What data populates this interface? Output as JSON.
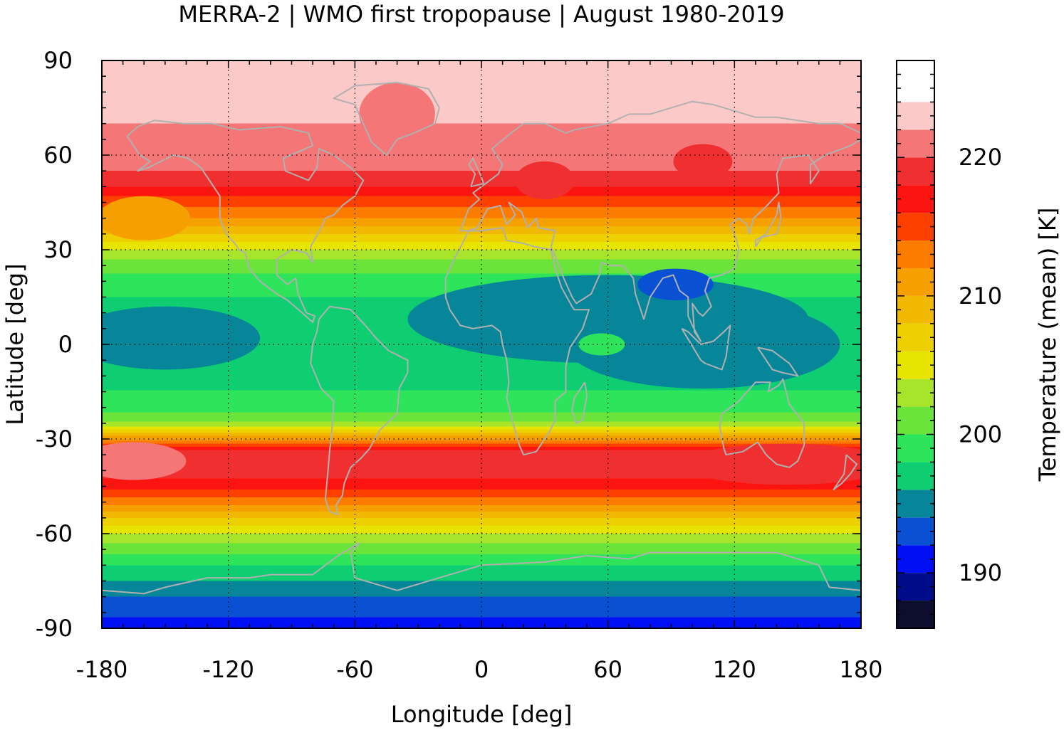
{
  "chart_data": {
    "type": "heatmap",
    "title": "MERRA-2 | WMO first tropopause | August 1980-2019",
    "xlabel": "Longitude [deg]",
    "ylabel": "Latitude [deg]",
    "xlim": [
      -180,
      180
    ],
    "ylim": [
      -90,
      90
    ],
    "xticks": [
      -180,
      -120,
      -60,
      0,
      60,
      120,
      180
    ],
    "yticks": [
      90,
      60,
      30,
      0,
      -30,
      -60,
      -90
    ],
    "grid": true,
    "coastlines": true,
    "colorbar": {
      "label": "Temperature (mean) [K]",
      "ticks": [
        190,
        200,
        210,
        220
      ],
      "levels": [
        186,
        187,
        188,
        189,
        190,
        191,
        192,
        193,
        194,
        195,
        196,
        197,
        198,
        199,
        200,
        201,
        202,
        203,
        204,
        205,
        206,
        207,
        208,
        209,
        210,
        211,
        212,
        213,
        214,
        215,
        216,
        217,
        218,
        219,
        220,
        221,
        222,
        223,
        224,
        225,
        226,
        227
      ],
      "bands": [
        {
          "min": 186,
          "max": 188,
          "color": "#0d0d2e"
        },
        {
          "min": 188,
          "max": 190,
          "color": "#000c8a"
        },
        {
          "min": 190,
          "max": 192,
          "color": "#0010f5"
        },
        {
          "min": 192,
          "max": 194,
          "color": "#0a50d2"
        },
        {
          "min": 194,
          "max": 196,
          "color": "#07869a"
        },
        {
          "min": 196,
          "max": 198,
          "color": "#0fce72"
        },
        {
          "min": 198,
          "max": 200,
          "color": "#2ee45a"
        },
        {
          "min": 200,
          "max": 202,
          "color": "#6ae43a"
        },
        {
          "min": 202,
          "max": 204,
          "color": "#a8e42a"
        },
        {
          "min": 204,
          "max": 206,
          "color": "#e6e400"
        },
        {
          "min": 206,
          "max": 208,
          "color": "#ecd000"
        },
        {
          "min": 208,
          "max": 210,
          "color": "#f0b800"
        },
        {
          "min": 210,
          "max": 212,
          "color": "#f5a000"
        },
        {
          "min": 212,
          "max": 214,
          "color": "#fc7c00"
        },
        {
          "min": 214,
          "max": 216,
          "color": "#fc4000"
        },
        {
          "min": 216,
          "max": 218,
          "color": "#fc1410"
        },
        {
          "min": 218,
          "max": 220,
          "color": "#f03030"
        },
        {
          "min": 220,
          "max": 222,
          "color": "#f47676"
        },
        {
          "min": 222,
          "max": 224,
          "color": "#fcc9c9"
        }
      ]
    },
    "zonal_mean_profile": {
      "lat": [
        -90,
        -85,
        -80,
        -75,
        -70,
        -65,
        -60,
        -55,
        -50,
        -45,
        -40,
        -37,
        -34,
        -30,
        -27,
        -24,
        -20,
        -15,
        -10,
        -5,
        0,
        5,
        10,
        15,
        20,
        25,
        30,
        35,
        40,
        45,
        50,
        55,
        60,
        65,
        70,
        75,
        80,
        90
      ],
      "temperature": [
        191,
        192.5,
        194,
        196,
        198,
        201,
        204,
        208,
        213,
        217,
        219,
        219.5,
        218,
        211,
        205,
        201,
        199,
        198,
        197.5,
        197,
        197,
        197,
        197.5,
        198,
        199,
        201,
        204,
        208,
        212,
        215,
        218,
        220,
        221,
        221,
        222,
        223,
        223,
        223
      ]
    }
  }
}
